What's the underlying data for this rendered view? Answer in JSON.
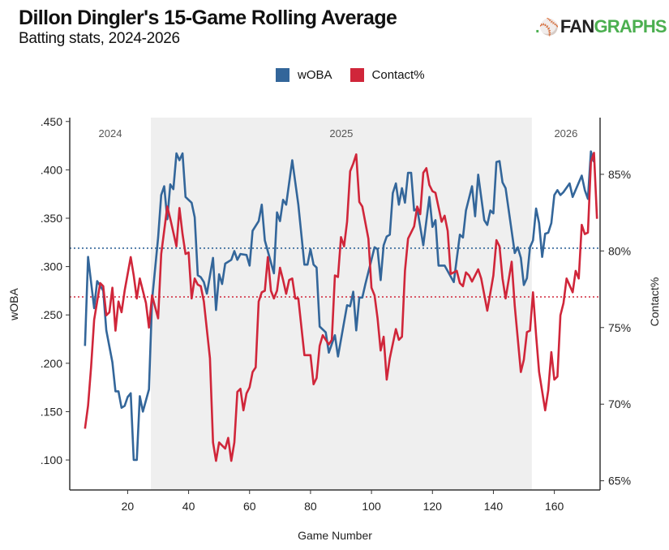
{
  "header": {
    "title": "Dillon Dingler's 15-Game Rolling Average",
    "subtitle": "Batting stats, 2024-2026",
    "logo_text": ".FANGRAPHS"
  },
  "chart_data": {
    "type": "line",
    "title": "Dillon Dingler's 15-Game Rolling Average",
    "subtitle": "Batting stats, 2024-2026",
    "xlabel": "Game Number",
    "ylabel_left": "wOBA",
    "ylabel_right": "Contact%",
    "xlim": [
      1,
      175
    ],
    "ylim_left": [
      0.069,
      0.454
    ],
    "ylim_right": [
      64.4,
      88.7
    ],
    "x_ticks": [
      "20",
      "40",
      "60",
      "80",
      "100",
      "120",
      "140",
      "160"
    ],
    "x_tick_values": [
      20,
      40,
      60,
      80,
      100,
      120,
      140,
      160
    ],
    "y_left_ticks": [
      ".100",
      ".150",
      ".200",
      ".250",
      ".300",
      ".350",
      ".400",
      ".450"
    ],
    "y_left_tick_values": [
      0.1,
      0.15,
      0.2,
      0.25,
      0.3,
      0.35,
      0.4,
      0.45
    ],
    "y_right_ticks": [
      "65%",
      "70%",
      "75%",
      "80%",
      "85%"
    ],
    "y_right_tick_values": [
      65,
      70,
      75,
      80,
      85
    ],
    "grid": false,
    "legend_placement": "top-center",
    "seasons": [
      {
        "label": "2024",
        "start": 1,
        "end": 27.6,
        "shaded": false
      },
      {
        "label": "2025",
        "start": 27.6,
        "end": 152.6,
        "shaded": true
      },
      {
        "label": "2026",
        "start": 152.6,
        "end": 175,
        "shaded": false
      }
    ],
    "reference_lines": [
      {
        "series": "wOBA",
        "value": 0.319
      },
      {
        "series": "Contact%",
        "value": 77.0
      }
    ],
    "colors": {
      "wOBA": "#33669a",
      "Contact%": "#d0263a",
      "shade": "#efefef"
    },
    "series": [
      {
        "name": "wOBA",
        "axis": "left",
        "points": [
          [
            6,
            0.218
          ],
          [
            7,
            0.31
          ],
          [
            9,
            0.257
          ],
          [
            10,
            0.285
          ],
          [
            11,
            0.28
          ],
          [
            12,
            0.275
          ],
          [
            13,
            0.234
          ],
          [
            15,
            0.201
          ],
          [
            16,
            0.171
          ],
          [
            17,
            0.171
          ],
          [
            18,
            0.154
          ],
          [
            19,
            0.156
          ],
          [
            20,
            0.165
          ],
          [
            21,
            0.169
          ],
          [
            22,
            0.1
          ],
          [
            23,
            0.1
          ],
          [
            24,
            0.166
          ],
          [
            25,
            0.15
          ],
          [
            27,
            0.173
          ],
          [
            28,
            0.265
          ],
          [
            30,
            0.33
          ],
          [
            31,
            0.374
          ],
          [
            32,
            0.383
          ],
          [
            33,
            0.349
          ],
          [
            34,
            0.385
          ],
          [
            35,
            0.38
          ],
          [
            36,
            0.417
          ],
          [
            37,
            0.41
          ],
          [
            38,
            0.417
          ],
          [
            39,
            0.372
          ],
          [
            41,
            0.366
          ],
          [
            42,
            0.351
          ],
          [
            43,
            0.291
          ],
          [
            44,
            0.289
          ],
          [
            45,
            0.284
          ],
          [
            46,
            0.272
          ],
          [
            48,
            0.309
          ],
          [
            49,
            0.255
          ],
          [
            50,
            0.292
          ],
          [
            51,
            0.282
          ],
          [
            52,
            0.303
          ],
          [
            54,
            0.307
          ],
          [
            55,
            0.316
          ],
          [
            56,
            0.307
          ],
          [
            57,
            0.313
          ],
          [
            59,
            0.312
          ],
          [
            60,
            0.301
          ],
          [
            61,
            0.337
          ],
          [
            63,
            0.347
          ],
          [
            64,
            0.364
          ],
          [
            65,
            0.327
          ],
          [
            68,
            0.293
          ],
          [
            69,
            0.356
          ],
          [
            70,
            0.347
          ],
          [
            71,
            0.369
          ],
          [
            72,
            0.364
          ],
          [
            74,
            0.41
          ],
          [
            76,
            0.364
          ],
          [
            78,
            0.302
          ],
          [
            79,
            0.302
          ],
          [
            80,
            0.318
          ],
          [
            81,
            0.302
          ],
          [
            82,
            0.299
          ],
          [
            83,
            0.238
          ],
          [
            85,
            0.232
          ],
          [
            86,
            0.211
          ],
          [
            88,
            0.229
          ],
          [
            89,
            0.207
          ],
          [
            92,
            0.26
          ],
          [
            93,
            0.259
          ],
          [
            94,
            0.274
          ],
          [
            95,
            0.234
          ],
          [
            96,
            0.268
          ],
          [
            97,
            0.268
          ],
          [
            98,
            0.282
          ],
          [
            101,
            0.32
          ],
          [
            102,
            0.318
          ],
          [
            103,
            0.286
          ],
          [
            104,
            0.322
          ],
          [
            105,
            0.331
          ],
          [
            106,
            0.333
          ],
          [
            107,
            0.376
          ],
          [
            108,
            0.386
          ],
          [
            109,
            0.364
          ],
          [
            110,
            0.381
          ],
          [
            111,
            0.366
          ],
          [
            112,
            0.397
          ],
          [
            113,
            0.397
          ],
          [
            114,
            0.358
          ],
          [
            115,
            0.36
          ],
          [
            117,
            0.322
          ],
          [
            119,
            0.372
          ],
          [
            120,
            0.341
          ],
          [
            121,
            0.348
          ],
          [
            122,
            0.301
          ],
          [
            124,
            0.301
          ],
          [
            127,
            0.284
          ],
          [
            129,
            0.333
          ],
          [
            130,
            0.33
          ],
          [
            131,
            0.358
          ],
          [
            133,
            0.383
          ],
          [
            134,
            0.352
          ],
          [
            135,
            0.395
          ],
          [
            137,
            0.348
          ],
          [
            138,
            0.343
          ],
          [
            139,
            0.358
          ],
          [
            140,
            0.355
          ],
          [
            141,
            0.408
          ],
          [
            142,
            0.409
          ],
          [
            143,
            0.387
          ],
          [
            144,
            0.381
          ],
          [
            147,
            0.314
          ],
          [
            148,
            0.32
          ],
          [
            149,
            0.309
          ],
          [
            150,
            0.281
          ],
          [
            151,
            0.288
          ],
          [
            152,
            0.32
          ],
          [
            153,
            0.327
          ],
          [
            154,
            0.36
          ],
          [
            155,
            0.345
          ],
          [
            156,
            0.31
          ],
          [
            157,
            0.334
          ],
          [
            158,
            0.335
          ],
          [
            159,
            0.345
          ],
          [
            160,
            0.374
          ],
          [
            161,
            0.379
          ],
          [
            162,
            0.374
          ],
          [
            163,
            0.377
          ],
          [
            165,
            0.386
          ],
          [
            166,
            0.372
          ],
          [
            169,
            0.394
          ],
          [
            170,
            0.379
          ],
          [
            171,
            0.37
          ],
          [
            172,
            0.419
          ],
          [
            173,
            0.408
          ]
        ]
      },
      {
        "name": "Contact%",
        "axis": "right",
        "points": [
          [
            6,
            68.4
          ],
          [
            7,
            69.9
          ],
          [
            8,
            72.4
          ],
          [
            9,
            75.5
          ],
          [
            10,
            76.7
          ],
          [
            11,
            77.9
          ],
          [
            12,
            77.7
          ],
          [
            13,
            75.8
          ],
          [
            14,
            76.0
          ],
          [
            15,
            77.6
          ],
          [
            16,
            74.8
          ],
          [
            17,
            76.7
          ],
          [
            18,
            76.0
          ],
          [
            19,
            77.4
          ],
          [
            21,
            79.6
          ],
          [
            22,
            78.4
          ],
          [
            23,
            76.9
          ],
          [
            24,
            78.2
          ],
          [
            26,
            76.6
          ],
          [
            27,
            75.0
          ],
          [
            28,
            77.1
          ],
          [
            30,
            75.6
          ],
          [
            31,
            79.8
          ],
          [
            33,
            82.9
          ],
          [
            34,
            82.1
          ],
          [
            36,
            80.3
          ],
          [
            37,
            82.8
          ],
          [
            38,
            81.1
          ],
          [
            39,
            79.8
          ],
          [
            40,
            79.9
          ],
          [
            41,
            76.9
          ],
          [
            42,
            78.2
          ],
          [
            43,
            77.8
          ],
          [
            44,
            77.7
          ],
          [
            45,
            76.7
          ],
          [
            47,
            73.0
          ],
          [
            48,
            67.5
          ],
          [
            49,
            66.3
          ],
          [
            50,
            67.5
          ],
          [
            52,
            67.1
          ],
          [
            53,
            67.8
          ],
          [
            54,
            66.3
          ],
          [
            55,
            67.5
          ],
          [
            56,
            70.8
          ],
          [
            57,
            71.0
          ],
          [
            58,
            69.6
          ],
          [
            59,
            70.7
          ],
          [
            60,
            71.1
          ],
          [
            61,
            72.1
          ],
          [
            62,
            72.4
          ],
          [
            63,
            76.7
          ],
          [
            64,
            77.3
          ],
          [
            65,
            77.4
          ],
          [
            66,
            79.6
          ],
          [
            67,
            77.4
          ],
          [
            68,
            76.9
          ],
          [
            69,
            77.4
          ],
          [
            70,
            78.9
          ],
          [
            71,
            78.1
          ],
          [
            72,
            77.2
          ],
          [
            73,
            78.1
          ],
          [
            74,
            78.2
          ],
          [
            75,
            76.9
          ],
          [
            76,
            76.9
          ],
          [
            78,
            73.2
          ],
          [
            79,
            73.2
          ],
          [
            80,
            73.2
          ],
          [
            81,
            71.3
          ],
          [
            82,
            71.7
          ],
          [
            83,
            73.8
          ],
          [
            84,
            74.5
          ],
          [
            86,
            73.9
          ],
          [
            87,
            74.2
          ],
          [
            88,
            78.4
          ],
          [
            89,
            78.3
          ],
          [
            90,
            80.9
          ],
          [
            91,
            80.3
          ],
          [
            92,
            81.9
          ],
          [
            93,
            85.2
          ],
          [
            94,
            85.7
          ],
          [
            95,
            86.3
          ],
          [
            96,
            83.2
          ],
          [
            97,
            82.9
          ],
          [
            99,
            80.8
          ],
          [
            100,
            77.6
          ],
          [
            101,
            77.1
          ],
          [
            102,
            75.6
          ],
          [
            103,
            73.5
          ],
          [
            104,
            74.4
          ],
          [
            105,
            71.6
          ],
          [
            106,
            73.0
          ],
          [
            108,
            74.9
          ],
          [
            109,
            74.2
          ],
          [
            110,
            74.4
          ],
          [
            111,
            78.7
          ],
          [
            112,
            80.8
          ],
          [
            114,
            81.6
          ],
          [
            115,
            82.9
          ],
          [
            116,
            82.4
          ],
          [
            117,
            85.1
          ],
          [
            118,
            85.4
          ],
          [
            119,
            84.3
          ],
          [
            120,
            83.9
          ],
          [
            121,
            83.8
          ],
          [
            123,
            81.9
          ],
          [
            124,
            82.3
          ],
          [
            125,
            81.3
          ],
          [
            126,
            78.5
          ],
          [
            128,
            78.7
          ],
          [
            129,
            77.9
          ],
          [
            130,
            77.7
          ],
          [
            131,
            78.6
          ],
          [
            132,
            78.4
          ],
          [
            133,
            78.0
          ],
          [
            135,
            78.8
          ],
          [
            136,
            78.2
          ],
          [
            138,
            76.1
          ],
          [
            140,
            78.4
          ],
          [
            141,
            80.7
          ],
          [
            142,
            80.3
          ],
          [
            143,
            78.2
          ],
          [
            144,
            76.9
          ],
          [
            146,
            79.3
          ],
          [
            147,
            76.4
          ],
          [
            149,
            72.1
          ],
          [
            150,
            72.9
          ],
          [
            151,
            74.7
          ],
          [
            152,
            74.8
          ],
          [
            153,
            77.3
          ],
          [
            154,
            74.5
          ],
          [
            155,
            72.1
          ],
          [
            157,
            69.6
          ],
          [
            158,
            70.9
          ],
          [
            159,
            73.4
          ],
          [
            160,
            71.6
          ],
          [
            161,
            71.8
          ],
          [
            162,
            75.8
          ],
          [
            163,
            76.6
          ],
          [
            164,
            78.2
          ],
          [
            166,
            77.3
          ],
          [
            167,
            78.7
          ],
          [
            168,
            78.2
          ],
          [
            169,
            81.7
          ],
          [
            170,
            81.1
          ],
          [
            171,
            81.2
          ],
          [
            172,
            85.8
          ],
          [
            173,
            86.4
          ],
          [
            174,
            82.1
          ]
        ]
      }
    ]
  }
}
